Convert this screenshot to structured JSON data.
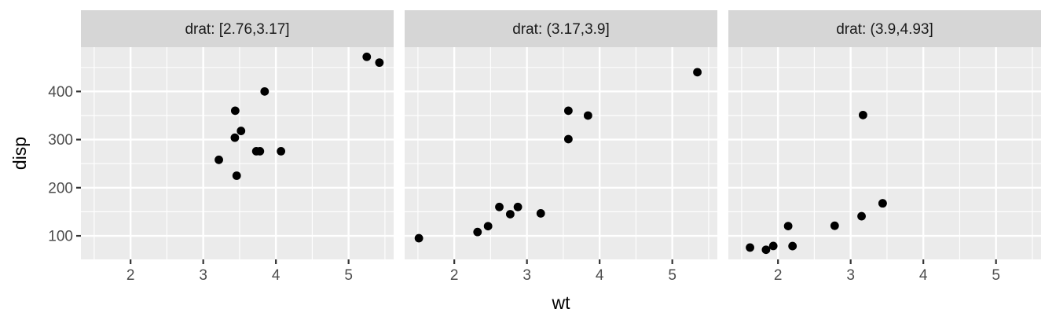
{
  "figure": {
    "kind": "ggplot-faceted-scatter",
    "background": "#ffffff"
  },
  "chart_data": {
    "type": "scatter",
    "title": "",
    "xlabel": "wt",
    "ylabel": "disp",
    "legend_position": "none",
    "grid": "major-and-minor",
    "x_domain": [
      1.317,
      5.62
    ],
    "y_domain": [
      51.05,
      492.05
    ],
    "x_ticks": [
      2,
      3,
      4,
      5
    ],
    "y_ticks": [
      100,
      200,
      300,
      400
    ],
    "x_minor_ticks": [
      1.5,
      2.5,
      3.5,
      4.5,
      5.5
    ],
    "y_minor_ticks": [
      150,
      250,
      350,
      450
    ],
    "x_tick_labels": [
      "2",
      "3",
      "4",
      "5"
    ],
    "y_tick_labels": [
      "100",
      "200",
      "300",
      "400"
    ],
    "point_style": {
      "color": "#000000",
      "radius": 5.4
    },
    "facets": [
      {
        "label": "drat: [2.76,3.17]",
        "points": [
          [
            3.215,
            258.0
          ],
          [
            3.44,
            360.0
          ],
          [
            3.46,
            225.0
          ],
          [
            4.07,
            275.8
          ],
          [
            3.73,
            275.8
          ],
          [
            3.78,
            275.8
          ],
          [
            5.25,
            472.0
          ],
          [
            5.424,
            460.0
          ],
          [
            3.52,
            318.0
          ],
          [
            3.435,
            304.0
          ],
          [
            3.845,
            400.0
          ]
        ]
      },
      {
        "label": "drat: (3.17,3.9]",
        "points": [
          [
            2.62,
            160.0
          ],
          [
            2.875,
            160.0
          ],
          [
            2.32,
            108.0
          ],
          [
            3.57,
            360.0
          ],
          [
            3.19,
            146.7
          ],
          [
            5.345,
            440.0
          ],
          [
            2.465,
            120.1
          ],
          [
            3.84,
            350.0
          ],
          [
            1.513,
            95.1
          ],
          [
            2.77,
            145.0
          ],
          [
            3.57,
            301.0
          ]
        ]
      },
      {
        "label": "drat: (3.9,4.93]",
        "points": [
          [
            3.15,
            140.8
          ],
          [
            3.44,
            167.6
          ],
          [
            3.44,
            167.6
          ],
          [
            2.2,
            78.7
          ],
          [
            1.615,
            75.7
          ],
          [
            1.835,
            71.1
          ],
          [
            1.935,
            79.0
          ],
          [
            2.14,
            120.3
          ],
          [
            3.17,
            351.0
          ],
          [
            2.78,
            121.0
          ]
        ]
      }
    ],
    "colors": {
      "panel_bg": "#EBEBEB",
      "strip_bg": "#D6D6D6",
      "grid_line": "#FFFFFF",
      "tick_mark": "#333333",
      "tick_label": "#4D4D4D",
      "strip_text": "#1A1A1A",
      "axis_title": "#000000",
      "point": "#000000"
    }
  }
}
